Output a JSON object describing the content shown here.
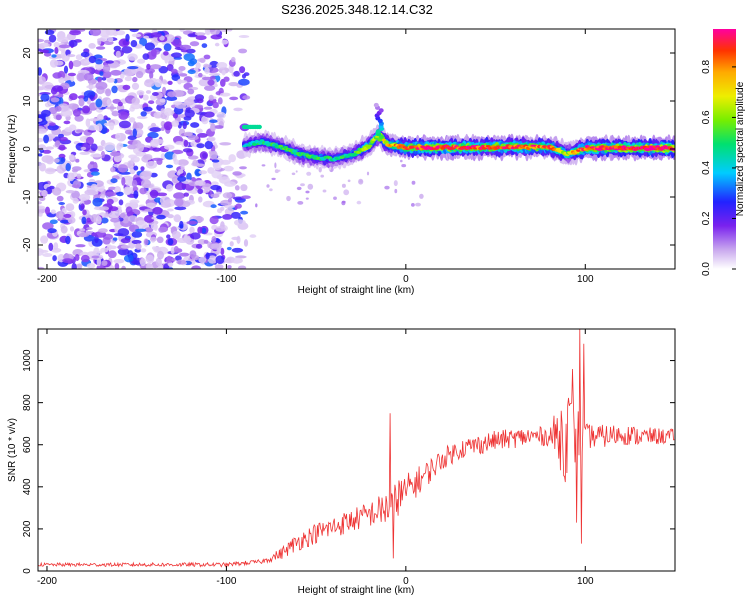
{
  "figure_title": "S236.2025.348.12.14.C32",
  "chart_data": [
    {
      "type": "heatmap",
      "panel": "top",
      "title": "S236.2025.348.12.14.C32",
      "xlabel": "Height of straight line (km)",
      "ylabel": "Frequency (Hz)",
      "xlim": [
        -205,
        150
      ],
      "ylim": [
        -25,
        25
      ],
      "x_ticks": [
        -200,
        -100,
        0,
        100
      ],
      "x_tick_labels": [
        "-200",
        "-100",
        "0",
        "100"
      ],
      "y_ticks": [
        -20,
        -10,
        0,
        10,
        20
      ],
      "y_tick_labels": [
        "-20",
        "-10",
        "0",
        "10",
        "20"
      ],
      "noise_region_x": [
        -205,
        -85
      ],
      "signal_ridge": {
        "x": [
          -90,
          -80,
          -70,
          -60,
          -50,
          -40,
          -30,
          -20,
          -15,
          -10,
          0,
          20,
          40,
          60,
          80,
          90,
          95,
          100,
          150
        ],
        "freq": [
          0.8,
          1.5,
          0.5,
          -1.0,
          -1.8,
          -2.0,
          -1.2,
          0.8,
          3.0,
          1.0,
          0.3,
          0.3,
          0.3,
          0.5,
          0.4,
          -1.0,
          -0.5,
          0.2,
          0.2
        ],
        "amplitude": [
          0.4,
          0.45,
          0.5,
          0.5,
          0.5,
          0.45,
          0.5,
          0.6,
          0.6,
          0.7,
          0.85,
          0.9,
          0.85,
          0.85,
          0.8,
          0.6,
          0.75,
          0.9,
          0.95
        ]
      },
      "colorbar": {
        "label": "Normalized spectral amplitude",
        "range": [
          0.0,
          0.95
        ],
        "ticks": [
          0.0,
          0.2,
          0.4,
          0.6,
          0.8
        ],
        "tick_labels": [
          "0.0",
          "0.2",
          "0.4",
          "0.6",
          "0.8"
        ],
        "colors": [
          "#ffffff",
          "#c9a8ee",
          "#7a22ee",
          "#2222ff",
          "#00ccff",
          "#00e070",
          "#77ee00",
          "#eeee00",
          "#ffaa00",
          "#ff3300",
          "#ff00a0"
        ]
      },
      "legend": "none"
    },
    {
      "type": "line",
      "panel": "bottom",
      "title": "",
      "xlabel": "Height of straight line (km)",
      "ylabel": "SNR (10 * v/v)",
      "xlim": [
        -205,
        150
      ],
      "ylim": [
        0,
        1150
      ],
      "x_ticks": [
        -200,
        -100,
        0,
        100
      ],
      "x_tick_labels": [
        "-200",
        "-100",
        "0",
        "100"
      ],
      "y_ticks": [
        0,
        200,
        400,
        600,
        800,
        1000
      ],
      "y_tick_labels": [
        "0",
        "200",
        "400",
        "600",
        "800",
        "1000"
      ],
      "series": [
        {
          "name": "SNR",
          "color": "#ee3333",
          "trend_x": [
            -205,
            -150,
            -100,
            -80,
            -70,
            -60,
            -50,
            -40,
            -30,
            -20,
            -10,
            0,
            10,
            20,
            30,
            40,
            50,
            60,
            70,
            80,
            90,
            100,
            110,
            120,
            130,
            140,
            150
          ],
          "trend_y": [
            30,
            30,
            30,
            45,
            80,
            140,
            180,
            210,
            240,
            270,
            300,
            380,
            450,
            530,
            580,
            600,
            620,
            630,
            640,
            640,
            650,
            640,
            640,
            650,
            640,
            640,
            640
          ],
          "noise_amplitude_x": [
            -205,
            -80,
            -60,
            -20,
            -10,
            0,
            20,
            80,
            90,
            100,
            150
          ],
          "noise_amplitude": [
            8,
            10,
            45,
            60,
            90,
            80,
            50,
            45,
            250,
            60,
            35
          ],
          "spikes": [
            {
              "x": -9,
              "y": 750
            },
            {
              "x": -7,
              "y": 60
            },
            {
              "x": -4,
              "y": 430
            },
            {
              "x": 93,
              "y": 960
            },
            {
              "x": 95,
              "y": 230
            },
            {
              "x": 97,
              "y": 1150
            },
            {
              "x": 98,
              "y": 130
            },
            {
              "x": 99,
              "y": 1080
            }
          ]
        }
      ],
      "legend": "none"
    }
  ]
}
